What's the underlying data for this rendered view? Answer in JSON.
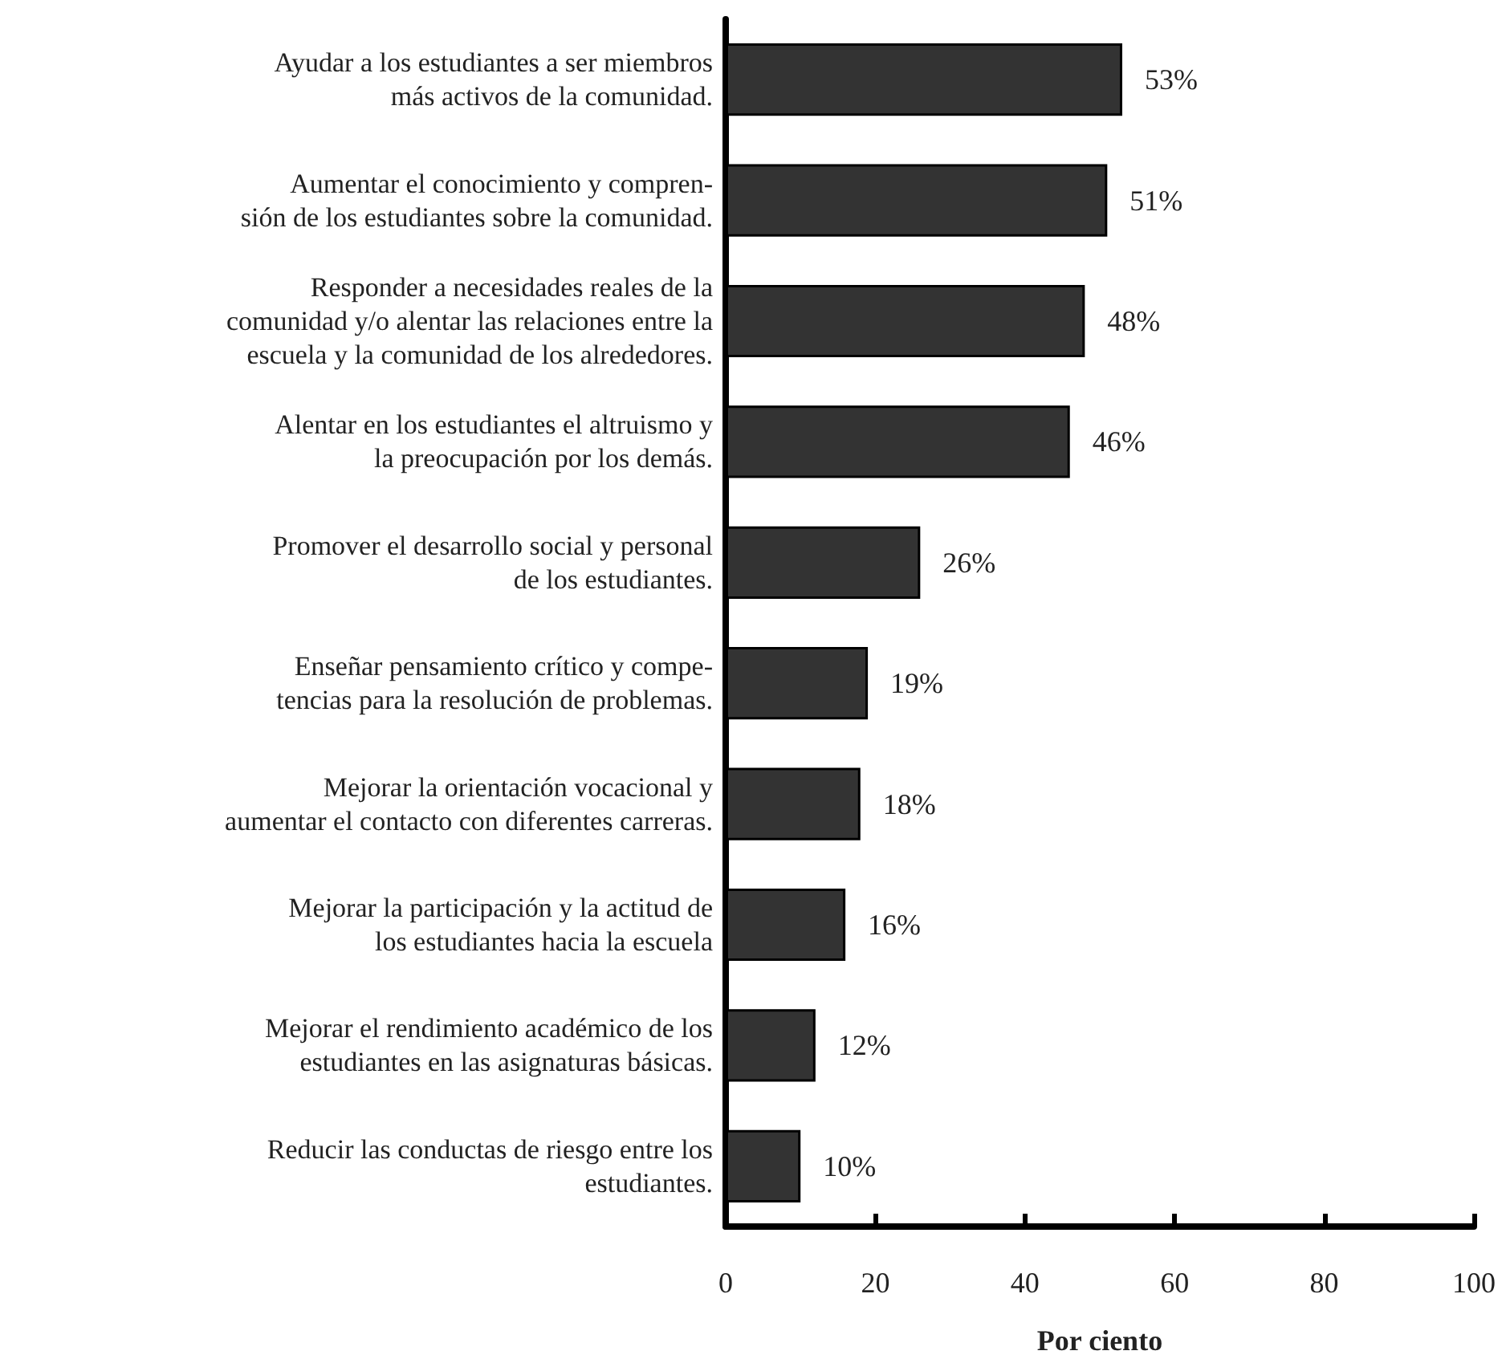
{
  "chart_data": {
    "type": "bar",
    "orientation": "horizontal",
    "xlabel": "Por ciento",
    "categories": [
      "Ayudar a los estudiantes a ser miembros\nmás activos de la comunidad.",
      "Aumentar el conocimiento y compren-\nsión de los estudiantes sobre la comunidad.",
      "Responder a necesidades reales de la\ncomunidad y/o alentar las relaciones entre la\nescuela y la comunidad de los alrededores.",
      "Alentar en los estudiantes el altruismo y\nla preocupación por los demás.",
      "Promover el desarrollo social y personal\nde los estudiantes.",
      "Enseñar pensamiento crítico y compe-\ntencias para la resolución de problemas.",
      "Mejorar la orientación vocacional y\naumentar el contacto con diferentes carreras.",
      "Mejorar la participación y la actitud de\nlos estudiantes hacia la escuela",
      "Mejorar el rendimiento académico de los\nestudiantes en las asignaturas básicas.",
      "Reducir las conductas de riesgo entre los\nestudiantes."
    ],
    "values": [
      53,
      51,
      48,
      46,
      26,
      19,
      18,
      16,
      12,
      10
    ],
    "value_labels": [
      "53%",
      "51%",
      "48%",
      "46%",
      "26%",
      "19%",
      "18%",
      "16%",
      "12%",
      "10%"
    ],
    "color": "#333333",
    "xlim": [
      0,
      100
    ],
    "xticks": [
      0,
      20,
      40,
      60,
      80,
      100
    ],
    "grid": false
  }
}
